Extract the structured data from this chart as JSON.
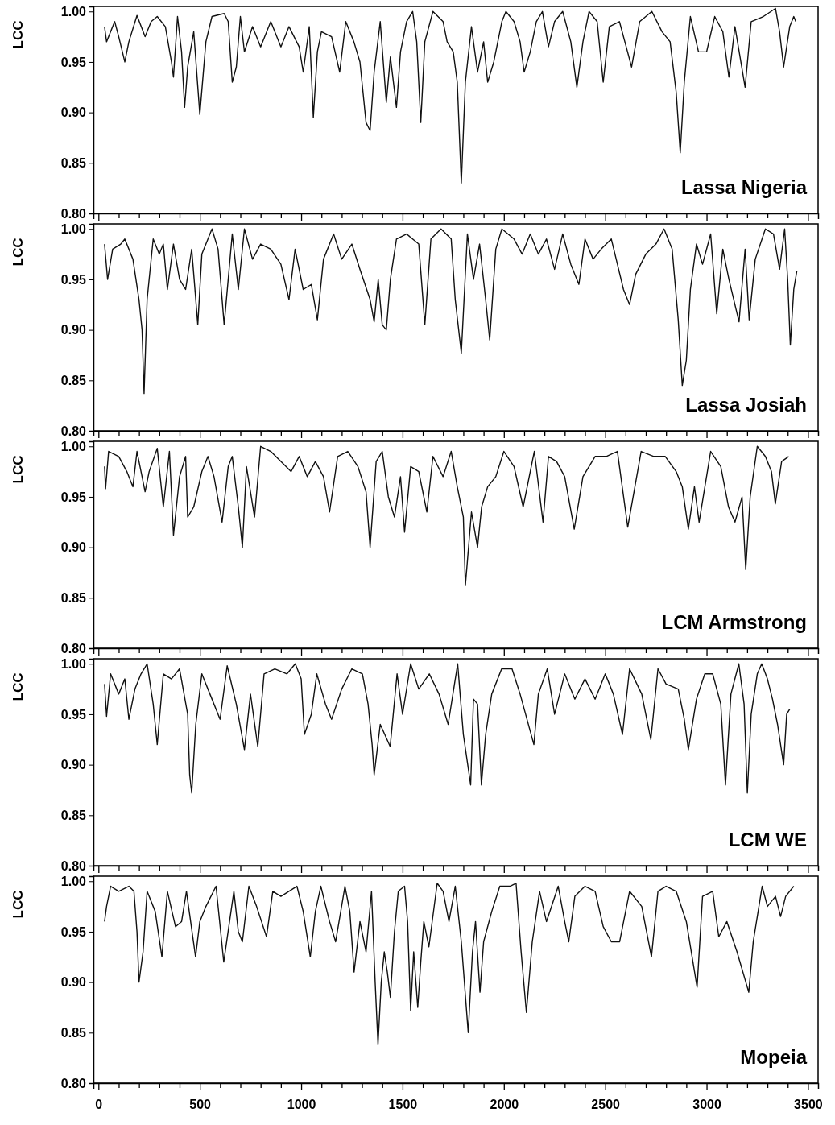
{
  "chart_data": [
    {
      "type": "line",
      "title": "Lassa Nigeria",
      "ylabel": "LCC",
      "xlim": [
        -25,
        3550
      ],
      "ylim": [
        0.8,
        1.005
      ],
      "tick_labels": "y",
      "grid": false,
      "xticks": [
        0,
        100,
        200,
        300,
        400,
        500,
        600,
        700,
        800,
        900,
        1000,
        1100,
        1200,
        1300,
        1400,
        1500,
        1600,
        1700,
        1800,
        1900,
        2000,
        2100,
        2200,
        2300,
        2400,
        2500,
        2600,
        2700,
        2800,
        2900,
        3000,
        3100,
        3200,
        3300,
        3400,
        3500
      ],
      "yticks": [
        {
          "value": 0.8,
          "label": "0.80"
        },
        {
          "value": 0.85,
          "label": "0.85"
        },
        {
          "value": 0.9,
          "label": "0.90"
        },
        {
          "value": 0.95,
          "label": "0.95"
        },
        {
          "value": 1.0,
          "label": "1.00"
        }
      ],
      "series": [
        {
          "color": "#111111",
          "x": [
            30,
            40,
            80,
            100,
            130,
            150,
            190,
            230,
            260,
            290,
            330,
            360,
            370,
            390,
            410,
            425,
            440,
            470,
            500,
            530,
            560,
            620,
            640,
            660,
            680,
            700,
            720,
            760,
            800,
            850,
            900,
            940,
            990,
            1010,
            1040,
            1060,
            1080,
            1100,
            1150,
            1190,
            1220,
            1260,
            1290,
            1320,
            1340,
            1360,
            1390,
            1420,
            1440,
            1470,
            1490,
            1520,
            1550,
            1570,
            1590,
            1610,
            1650,
            1700,
            1720,
            1750,
            1770,
            1790,
            1810,
            1840,
            1870,
            1900,
            1920,
            1950,
            1990,
            2010,
            2050,
            2080,
            2100,
            2130,
            2160,
            2190,
            2220,
            2250,
            2290,
            2330,
            2360,
            2390,
            2420,
            2460,
            2490,
            2520,
            2570,
            2610,
            2630,
            2670,
            2730,
            2780,
            2820,
            2850,
            2870,
            2890,
            2920,
            2960,
            3000,
            3040,
            3080,
            3110,
            3140,
            3190,
            3220,
            3280,
            3340,
            3360,
            3380,
            3410,
            3430,
            3440
          ],
          "values": [
            0.985,
            0.97,
            0.99,
            0.975,
            0.95,
            0.97,
            0.996,
            0.975,
            0.99,
            0.995,
            0.985,
            0.95,
            0.935,
            0.995,
            0.96,
            0.905,
            0.945,
            0.98,
            0.898,
            0.97,
            0.995,
            0.998,
            0.99,
            0.93,
            0.945,
            0.995,
            0.96,
            0.985,
            0.965,
            0.99,
            0.965,
            0.985,
            0.965,
            0.94,
            0.985,
            0.895,
            0.96,
            0.98,
            0.975,
            0.94,
            0.99,
            0.97,
            0.95,
            0.89,
            0.882,
            0.94,
            0.99,
            0.91,
            0.955,
            0.905,
            0.96,
            0.99,
            1.0,
            0.97,
            0.89,
            0.97,
            1.0,
            0.99,
            0.97,
            0.96,
            0.93,
            0.83,
            0.93,
            0.985,
            0.94,
            0.97,
            0.93,
            0.95,
            0.99,
            1.0,
            0.99,
            0.97,
            0.94,
            0.96,
            0.99,
            1.0,
            0.965,
            0.99,
            1.0,
            0.97,
            0.925,
            0.97,
            1.0,
            0.99,
            0.93,
            0.985,
            0.99,
            0.96,
            0.945,
            0.99,
            1.0,
            0.98,
            0.97,
            0.92,
            0.86,
            0.93,
            0.995,
            0.96,
            0.96,
            0.995,
            0.98,
            0.935,
            0.985,
            0.925,
            0.99,
            0.995,
            1.003,
            0.98,
            0.945,
            0.985,
            0.995,
            0.99
          ]
        }
      ]
    },
    {
      "type": "line",
      "title": "Lassa Josiah",
      "ylabel": "LCC",
      "xlim": [
        -25,
        3550
      ],
      "ylim": [
        0.8,
        1.005
      ],
      "tick_labels": "y",
      "grid": false,
      "xticks": [
        0,
        100,
        200,
        300,
        400,
        500,
        600,
        700,
        800,
        900,
        1000,
        1100,
        1200,
        1300,
        1400,
        1500,
        1600,
        1700,
        1800,
        1900,
        2000,
        2100,
        2200,
        2300,
        2400,
        2500,
        2600,
        2700,
        2800,
        2900,
        3000,
        3100,
        3200,
        3300,
        3400,
        3500
      ],
      "yticks": [
        {
          "value": 0.8,
          "label": "0.80"
        },
        {
          "value": 0.85,
          "label": "0.85"
        },
        {
          "value": 0.9,
          "label": "0.90"
        },
        {
          "value": 0.95,
          "label": "0.95"
        },
        {
          "value": 1.0,
          "label": "1.00"
        }
      ],
      "series": [
        {
          "color": "#111111",
          "x": [
            30,
            45,
            70,
            110,
            130,
            170,
            200,
            215,
            225,
            240,
            270,
            300,
            320,
            340,
            370,
            400,
            430,
            460,
            490,
            510,
            560,
            590,
            620,
            660,
            690,
            720,
            760,
            800,
            850,
            900,
            940,
            970,
            1010,
            1050,
            1080,
            1110,
            1160,
            1200,
            1250,
            1290,
            1340,
            1360,
            1380,
            1400,
            1420,
            1440,
            1470,
            1520,
            1580,
            1610,
            1640,
            1690,
            1740,
            1760,
            1790,
            1820,
            1850,
            1880,
            1910,
            1930,
            1960,
            1990,
            2050,
            2090,
            2130,
            2170,
            2210,
            2250,
            2290,
            2330,
            2370,
            2400,
            2440,
            2480,
            2530,
            2560,
            2590,
            2620,
            2650,
            2700,
            2750,
            2790,
            2830,
            2860,
            2880,
            2900,
            2920,
            2950,
            2980,
            3020,
            3050,
            3080,
            3110,
            3160,
            3190,
            3210,
            3240,
            3290,
            3330,
            3360,
            3385,
            3400,
            3413,
            3430,
            3445
          ],
          "values": [
            0.985,
            0.95,
            0.98,
            0.985,
            0.99,
            0.97,
            0.93,
            0.9,
            0.837,
            0.93,
            0.99,
            0.975,
            0.985,
            0.94,
            0.985,
            0.95,
            0.94,
            0.98,
            0.905,
            0.975,
            1.0,
            0.98,
            0.905,
            0.995,
            0.94,
            1.0,
            0.97,
            0.985,
            0.98,
            0.965,
            0.93,
            0.98,
            0.94,
            0.945,
            0.91,
            0.97,
            0.995,
            0.97,
            0.985,
            0.96,
            0.93,
            0.908,
            0.95,
            0.905,
            0.9,
            0.95,
            0.99,
            0.995,
            0.985,
            0.905,
            0.99,
            1.0,
            0.99,
            0.93,
            0.877,
            0.995,
            0.95,
            0.985,
            0.93,
            0.89,
            0.98,
            1.0,
            0.99,
            0.975,
            0.995,
            0.975,
            0.99,
            0.96,
            0.995,
            0.965,
            0.945,
            0.99,
            0.97,
            0.98,
            0.99,
            0.965,
            0.94,
            0.925,
            0.955,
            0.975,
            0.985,
            1.0,
            0.98,
            0.91,
            0.845,
            0.87,
            0.94,
            0.985,
            0.965,
            0.995,
            0.916,
            0.98,
            0.95,
            0.908,
            0.98,
            0.91,
            0.97,
            1.0,
            0.995,
            0.96,
            1.0,
            0.95,
            0.885,
            0.94,
            0.958
          ]
        }
      ]
    },
    {
      "type": "line",
      "title": "LCM Armstrong",
      "ylabel": "LCC",
      "xlim": [
        -25,
        3550
      ],
      "ylim": [
        0.8,
        1.005
      ],
      "tick_labels": "y",
      "grid": false,
      "xticks": [
        0,
        100,
        200,
        300,
        400,
        500,
        600,
        700,
        800,
        900,
        1000,
        1100,
        1200,
        1300,
        1400,
        1500,
        1600,
        1700,
        1800,
        1900,
        2000,
        2100,
        2200,
        2300,
        2400,
        2500,
        2600,
        2700,
        2800,
        2900,
        3000,
        3100,
        3200,
        3300,
        3400,
        3500
      ],
      "yticks": [
        {
          "value": 0.8,
          "label": "0.80"
        },
        {
          "value": 0.85,
          "label": "0.85"
        },
        {
          "value": 0.9,
          "label": "0.90"
        },
        {
          "value": 0.95,
          "label": "0.95"
        },
        {
          "value": 1.0,
          "label": "1.00"
        }
      ],
      "series": [
        {
          "color": "#111111",
          "x": [
            30,
            35,
            50,
            100,
            140,
            170,
            190,
            230,
            250,
            290,
            320,
            350,
            370,
            400,
            430,
            440,
            470,
            510,
            540,
            570,
            610,
            640,
            660,
            690,
            710,
            730,
            770,
            800,
            850,
            900,
            950,
            990,
            1030,
            1070,
            1110,
            1140,
            1180,
            1230,
            1280,
            1320,
            1340,
            1370,
            1400,
            1430,
            1460,
            1490,
            1510,
            1540,
            1580,
            1620,
            1650,
            1700,
            1740,
            1770,
            1800,
            1810,
            1840,
            1870,
            1890,
            1920,
            1960,
            2000,
            2050,
            2095,
            2150,
            2193,
            2220,
            2260,
            2300,
            2347,
            2390,
            2450,
            2505,
            2560,
            2611,
            2677,
            2740,
            2796,
            2850,
            2880,
            2910,
            2940,
            2963,
            3020,
            3070,
            3108,
            3140,
            3175,
            3193,
            3215,
            3250,
            3290,
            3320,
            3339,
            3370,
            3405
          ],
          "values": [
            0.98,
            0.958,
            0.995,
            0.99,
            0.975,
            0.96,
            0.995,
            0.955,
            0.975,
            0.998,
            0.94,
            0.995,
            0.912,
            0.97,
            0.99,
            0.93,
            0.94,
            0.975,
            0.99,
            0.97,
            0.925,
            0.98,
            0.99,
            0.94,
            0.9,
            0.98,
            0.93,
            1.0,
            0.995,
            0.985,
            0.975,
            0.99,
            0.97,
            0.985,
            0.97,
            0.935,
            0.99,
            0.995,
            0.98,
            0.955,
            0.9,
            0.985,
            0.995,
            0.95,
            0.93,
            0.97,
            0.915,
            0.98,
            0.975,
            0.935,
            0.99,
            0.97,
            0.995,
            0.96,
            0.93,
            0.862,
            0.935,
            0.9,
            0.94,
            0.96,
            0.97,
            0.995,
            0.98,
            0.94,
            0.995,
            0.925,
            0.99,
            0.985,
            0.97,
            0.918,
            0.97,
            0.99,
            0.99,
            0.995,
            0.92,
            0.995,
            0.99,
            0.99,
            0.975,
            0.96,
            0.918,
            0.96,
            0.925,
            0.995,
            0.98,
            0.94,
            0.925,
            0.95,
            0.878,
            0.95,
            1.0,
            0.99,
            0.975,
            0.943,
            0.985,
            0.99
          ]
        }
      ]
    },
    {
      "type": "line",
      "title": "LCM WE",
      "ylabel": "LCC",
      "xlim": [
        -25,
        3550
      ],
      "ylim": [
        0.8,
        1.005
      ],
      "tick_labels": "y",
      "grid": false,
      "xticks": [
        0,
        100,
        200,
        300,
        400,
        500,
        600,
        700,
        800,
        900,
        1000,
        1100,
        1200,
        1300,
        1400,
        1500,
        1600,
        1700,
        1800,
        1900,
        2000,
        2100,
        2200,
        2300,
        2400,
        2500,
        2600,
        2700,
        2800,
        2900,
        3000,
        3100,
        3200,
        3300,
        3400,
        3500
      ],
      "yticks": [
        {
          "value": 0.8,
          "label": "0.80"
        },
        {
          "value": 0.85,
          "label": "0.85"
        },
        {
          "value": 0.9,
          "label": "0.90"
        },
        {
          "value": 0.95,
          "label": "0.95"
        },
        {
          "value": 1.0,
          "label": "1.00"
        }
      ],
      "series": [
        {
          "color": "#111111",
          "x": [
            30,
            40,
            60,
            100,
            130,
            150,
            180,
            210,
            240,
            270,
            280,
            290,
            320,
            360,
            400,
            440,
            450,
            460,
            480,
            510,
            550,
            600,
            635,
            680,
            720,
            750,
            786,
            817,
            870,
            930,
            971,
            1000,
            1016,
            1050,
            1077,
            1120,
            1150,
            1200,
            1250,
            1302,
            1330,
            1350,
            1360,
            1390,
            1439,
            1473,
            1500,
            1540,
            1580,
            1632,
            1680,
            1725,
            1772,
            1800,
            1836,
            1850,
            1870,
            1889,
            1910,
            1940,
            1989,
            2040,
            2080,
            2148,
            2170,
            2214,
            2250,
            2300,
            2350,
            2400,
            2450,
            2500,
            2540,
            2585,
            2620,
            2680,
            2725,
            2760,
            2800,
            2860,
            2890,
            2910,
            2950,
            2991,
            3030,
            3070,
            3093,
            3120,
            3159,
            3185,
            3201,
            3220,
            3250,
            3272,
            3300,
            3325,
            3350,
            3380,
            3395,
            3410
          ],
          "values": [
            0.98,
            0.948,
            0.99,
            0.97,
            0.985,
            0.945,
            0.975,
            0.99,
            1.0,
            0.96,
            0.94,
            0.92,
            0.99,
            0.985,
            0.995,
            0.95,
            0.89,
            0.872,
            0.94,
            0.99,
            0.97,
            0.945,
            0.998,
            0.96,
            0.915,
            0.97,
            0.918,
            0.99,
            0.995,
            0.99,
            1.0,
            0.985,
            0.93,
            0.95,
            0.99,
            0.96,
            0.945,
            0.975,
            0.995,
            0.99,
            0.96,
            0.92,
            0.89,
            0.94,
            0.918,
            0.99,
            0.95,
            1.0,
            0.975,
            0.99,
            0.97,
            0.94,
            1.0,
            0.93,
            0.88,
            0.965,
            0.96,
            0.88,
            0.93,
            0.97,
            0.995,
            0.995,
            0.97,
            0.92,
            0.97,
            0.995,
            0.95,
            0.99,
            0.965,
            0.985,
            0.965,
            0.99,
            0.97,
            0.93,
            0.995,
            0.97,
            0.925,
            0.995,
            0.98,
            0.975,
            0.945,
            0.915,
            0.965,
            0.99,
            0.99,
            0.96,
            0.88,
            0.97,
            1.0,
            0.96,
            0.872,
            0.95,
            0.99,
            1.0,
            0.985,
            0.965,
            0.94,
            0.9,
            0.95,
            0.955
          ]
        }
      ]
    },
    {
      "type": "line",
      "title": "Mopeia",
      "ylabel": "LCC",
      "xlim": [
        -25,
        3550
      ],
      "ylim": [
        0.8,
        1.005
      ],
      "grid": false,
      "xticks": [
        0,
        {
          "value": 100,
          "label": null
        },
        {
          "value": 200,
          "label": null
        },
        {
          "value": 300,
          "label": null
        },
        {
          "value": 400,
          "label": null
        },
        500,
        {
          "value": 600,
          "label": null
        },
        {
          "value": 700,
          "label": null
        },
        {
          "value": 800,
          "label": null
        },
        {
          "value": 900,
          "label": null
        },
        1000,
        {
          "value": 1100,
          "label": null
        },
        {
          "value": 1200,
          "label": null
        },
        {
          "value": 1300,
          "label": null
        },
        {
          "value": 1400,
          "label": null
        },
        1500,
        {
          "value": 1600,
          "label": null
        },
        {
          "value": 1700,
          "label": null
        },
        {
          "value": 1800,
          "label": null
        },
        {
          "value": 1900,
          "label": null
        },
        2000,
        {
          "value": 2100,
          "label": null
        },
        {
          "value": 2200,
          "label": null
        },
        {
          "value": 2300,
          "label": null
        },
        {
          "value": 2400,
          "label": null
        },
        2500,
        {
          "value": 2600,
          "label": null
        },
        {
          "value": 2700,
          "label": null
        },
        {
          "value": 2800,
          "label": null
        },
        {
          "value": 2900,
          "label": null
        },
        3000,
        {
          "value": 3100,
          "label": null
        },
        {
          "value": 3200,
          "label": null
        },
        {
          "value": 3300,
          "label": null
        },
        {
          "value": 3400,
          "label": null
        },
        3500
      ],
      "yticks": [
        {
          "value": 0.8,
          "label": "0.80"
        },
        {
          "value": 0.85,
          "label": "0.85"
        },
        {
          "value": 0.9,
          "label": "0.90"
        },
        {
          "value": 0.95,
          "label": "0.95"
        },
        {
          "value": 1.0,
          "label": "1.00"
        }
      ],
      "series": [
        {
          "color": "#111111",
          "x": [
            30,
            40,
            60,
            100,
            150,
            175,
            190,
            200,
            220,
            240,
            280,
            313,
            340,
            380,
            410,
            434,
            479,
            500,
            530,
            580,
            618,
            668,
            690,
            710,
            742,
            780,
            829,
            860,
            900,
            979,
            1010,
            1045,
            1070,
            1097,
            1140,
            1170,
            1216,
            1240,
            1261,
            1290,
            1320,
            1347,
            1365,
            1379,
            1395,
            1410,
            1425,
            1440,
            1460,
            1479,
            1510,
            1525,
            1540,
            1555,
            1575,
            1590,
            1605,
            1630,
            1671,
            1700,
            1729,
            1760,
            1790,
            1824,
            1845,
            1860,
            1882,
            1900,
            1940,
            1980,
            2030,
            2060,
            2085,
            2111,
            2140,
            2176,
            2210,
            2268,
            2300,
            2320,
            2350,
            2400,
            2450,
            2490,
            2530,
            2571,
            2620,
            2680,
            2728,
            2760,
            2800,
            2850,
            2900,
            2953,
            2980,
            3030,
            3060,
            3100,
            3150,
            3208,
            3230,
            3274,
            3300,
            3340,
            3365,
            3390,
            3430
          ],
          "values": [
            0.96,
            0.975,
            0.995,
            0.99,
            0.995,
            0.99,
            0.95,
            0.9,
            0.93,
            0.99,
            0.97,
            0.925,
            0.99,
            0.955,
            0.96,
            0.99,
            0.925,
            0.96,
            0.975,
            0.995,
            0.92,
            0.99,
            0.95,
            0.94,
            0.995,
            0.975,
            0.945,
            0.99,
            0.985,
            0.995,
            0.97,
            0.925,
            0.97,
            0.995,
            0.96,
            0.94,
            0.995,
            0.97,
            0.91,
            0.96,
            0.93,
            0.99,
            0.9,
            0.838,
            0.9,
            0.93,
            0.91,
            0.885,
            0.95,
            0.99,
            0.995,
            0.96,
            0.872,
            0.93,
            0.875,
            0.92,
            0.96,
            0.935,
            0.998,
            0.99,
            0.96,
            0.995,
            0.94,
            0.85,
            0.93,
            0.96,
            0.89,
            0.94,
            0.97,
            0.995,
            0.995,
            0.998,
            0.93,
            0.87,
            0.94,
            0.99,
            0.96,
            0.995,
            0.96,
            0.94,
            0.985,
            0.995,
            0.99,
            0.955,
            0.94,
            0.94,
            0.99,
            0.975,
            0.925,
            0.99,
            0.995,
            0.99,
            0.96,
            0.895,
            0.985,
            0.99,
            0.945,
            0.96,
            0.93,
            0.89,
            0.94,
            0.995,
            0.975,
            0.985,
            0.965,
            0.985,
            0.995
          ]
        }
      ]
    }
  ]
}
